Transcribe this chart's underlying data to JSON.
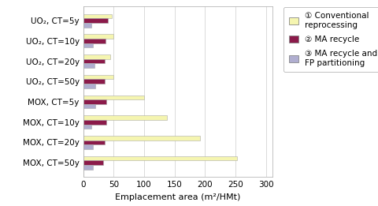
{
  "categories": [
    "UO₂, CT=5y",
    "UO₂, CT=10y",
    "UO₂, CT=20y",
    "UO₂, CT=50y",
    "MOX, CT=5y",
    "MOX, CT=10y",
    "MOX, CT=20y",
    "MOX, CT=50y"
  ],
  "series": {
    "conventional": [
      47,
      49,
      45,
      50,
      100,
      138,
      192,
      252
    ],
    "ma_recycle": [
      40,
      37,
      35,
      35,
      38,
      38,
      35,
      33
    ],
    "ma_fp": [
      14,
      16,
      18,
      20,
      20,
      14,
      16,
      16
    ]
  },
  "colors": {
    "conventional": "#f5f5b0",
    "ma_recycle": "#8b1a4a",
    "ma_fp": "#b0aed0"
  },
  "legend_labels": [
    "① Conventional\nreprocessing",
    "② MA recycle",
    "③ MA recycle and\nFP partitioning"
  ],
  "xlabel": "Emplacement area (m²/HMt)",
  "xlim": [
    0,
    310
  ],
  "xticks": [
    0,
    50,
    100,
    150,
    200,
    250,
    300
  ],
  "background_color": "#ffffff",
  "bar_height": 0.22,
  "axis_fontsize": 8,
  "tick_fontsize": 7.5,
  "legend_fontsize": 7.5
}
